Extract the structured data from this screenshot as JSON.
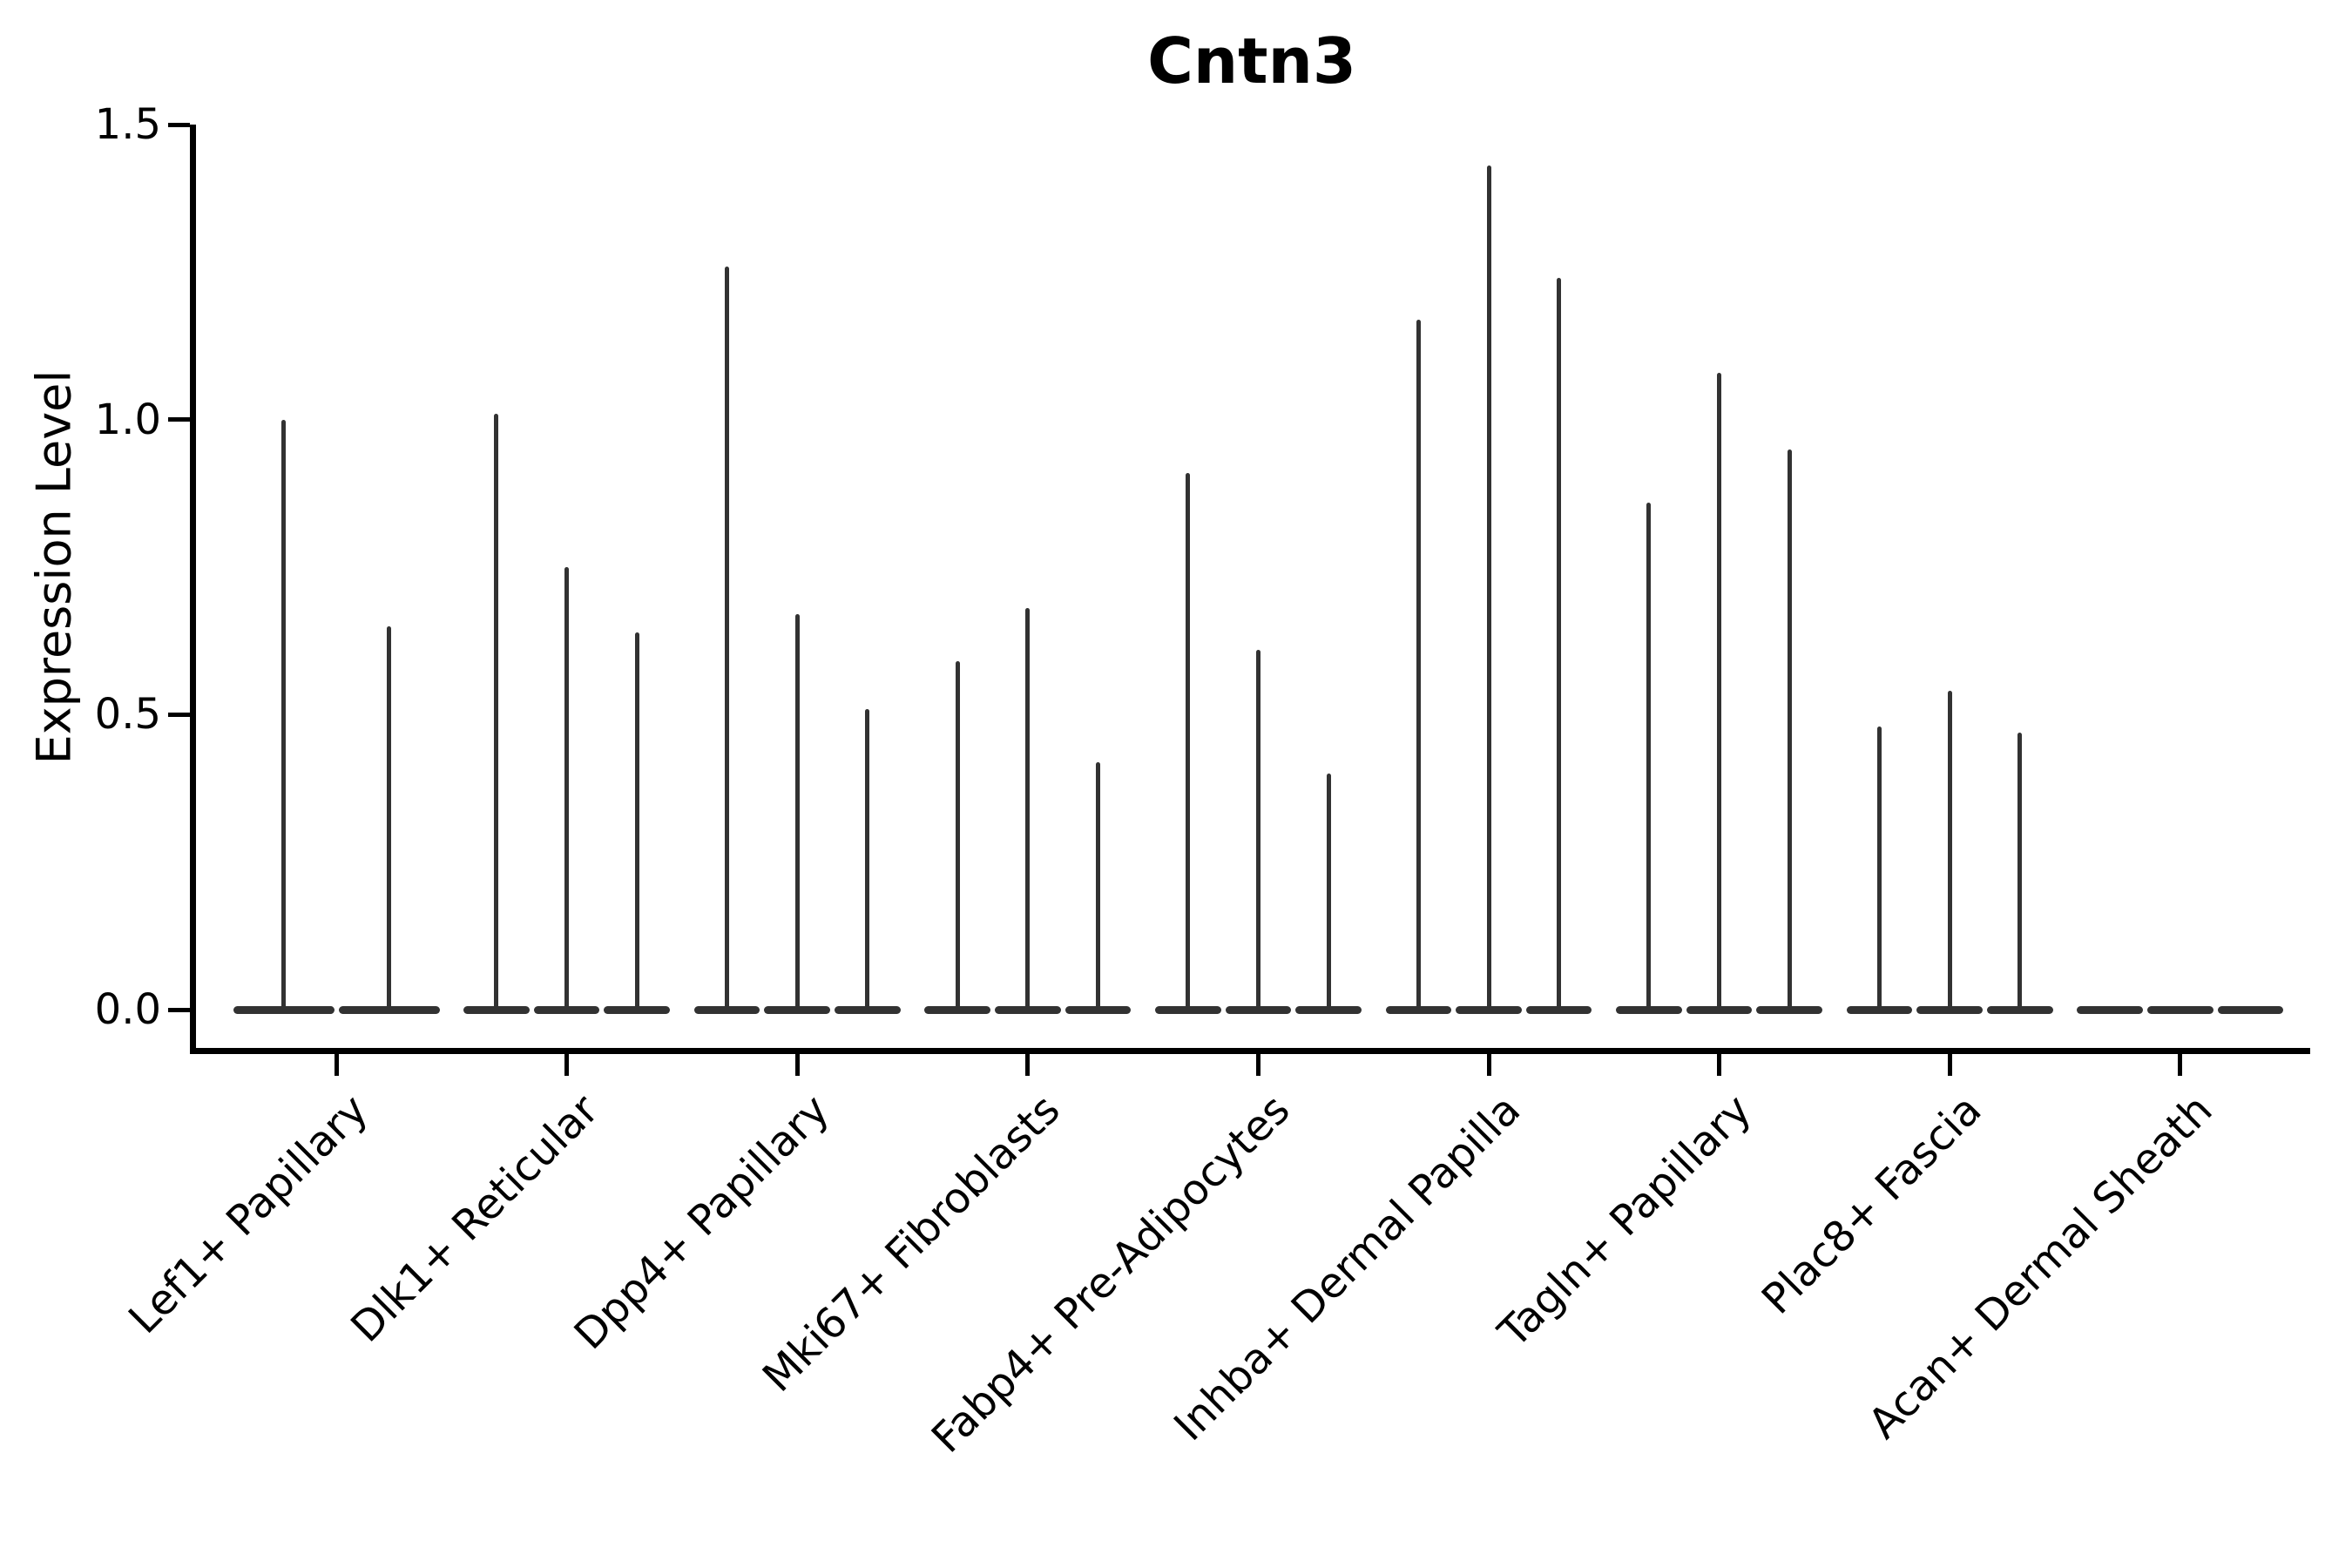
{
  "chart_data": {
    "type": "violin",
    "title": "Cntn3",
    "ylabel": "Expression Level",
    "xlabel": "",
    "ylim": [
      -0.07,
      1.5
    ],
    "yticks": [
      1.5,
      1.0,
      0.5,
      0.0
    ],
    "ytick_labels": [
      "1.5",
      "1.0",
      "0.5",
      "0.0"
    ],
    "grid": false,
    "legend": false,
    "categories": [
      "Lef1+ Papillary",
      "Dlk1+ Reticular",
      "Dpp4+ Papillary",
      "Mki67+ Fibroblasts",
      "Fabp4+ Pre-Adipocytes",
      "Inhba+ Dermal Papilla",
      "Tagln+ Papillary",
      "Plac8+ Fascia",
      "Acan+ Dermal Sheath"
    ],
    "groups": [
      {
        "category": "Lef1+ Papillary",
        "violin_peaks": [
          1.0,
          0.65
        ]
      },
      {
        "category": "Dlk1+ Reticular",
        "violin_peaks": [
          1.01,
          0.75,
          0.64
        ]
      },
      {
        "category": "Dpp4+ Papillary",
        "violin_peaks": [
          1.26,
          0.67,
          0.51
        ]
      },
      {
        "category": "Mki67+ Fibroblasts",
        "violin_peaks": [
          0.59,
          0.68,
          0.42
        ]
      },
      {
        "category": "Fabp4+ Pre-Adipocytes",
        "violin_peaks": [
          0.91,
          0.61,
          0.4
        ]
      },
      {
        "category": "Inhba+ Dermal Papilla",
        "violin_peaks": [
          1.17,
          1.43,
          1.24
        ]
      },
      {
        "category": "Tagln+ Papillary",
        "violin_peaks": [
          0.86,
          1.08,
          0.95
        ]
      },
      {
        "category": "Plac8+ Fascia",
        "violin_peaks": [
          0.48,
          0.54,
          0.47
        ]
      },
      {
        "category": "Acan+ Dermal Sheath",
        "violin_peaks": [
          0,
          0,
          0
        ]
      }
    ],
    "colors": {
      "violin": "#323232",
      "axis": "#000000",
      "text": "#000000",
      "background": "#ffffff"
    }
  }
}
